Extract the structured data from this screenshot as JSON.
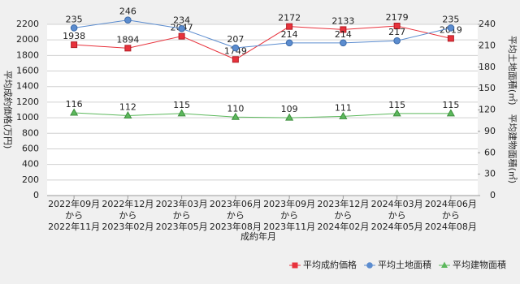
{
  "chart_data": {
    "type": "line",
    "x_label": "成約年月",
    "y_label": "平均成約価格(万円)",
    "y2_label": "平均土地面積(㎡)　平均建物面積(㎡)",
    "categories": [
      "2022年09月\nから\n2022年11月",
      "2022年12月\nから\n2023年02月",
      "2023年03月\nから\n2023年05月",
      "2023年06月\nから\n2023年08月",
      "2023年09月\nから\n2023年11月",
      "2023年12月\nから\n2024年02月",
      "2024年03月\nから\n2024年05月",
      "2024年06月\nから\n2024年08月"
    ],
    "series": [
      {
        "name": "平均成約価格",
        "color": "#e8323c",
        "marker": "square",
        "values": [
          1938,
          1894,
          2047,
          1749,
          2172,
          2133,
          2179,
          2019
        ]
      },
      {
        "name": "平均土地面積",
        "color": "#5b8ccf",
        "marker": "circle",
        "axis": "y2",
        "values": [
          235,
          246,
          234,
          207,
          214,
          214,
          217,
          235
        ]
      },
      {
        "name": "平均建物面積",
        "color": "#5cb85c",
        "marker": "triangle",
        "axis": "y2",
        "values": [
          116,
          112,
          115,
          110,
          109,
          111,
          115,
          115
        ]
      }
    ],
    "ylim": [
      0,
      2200
    ],
    "yticks": [
      0,
      200,
      400,
      600,
      800,
      1000,
      1200,
      1400,
      1600,
      1800,
      2000,
      2200
    ],
    "y2lim": [
      0,
      240
    ],
    "y2ticks": [
      0,
      30,
      60,
      90,
      120,
      150,
      180,
      210,
      240
    ],
    "grid": true,
    "legend": "bottom-right"
  }
}
